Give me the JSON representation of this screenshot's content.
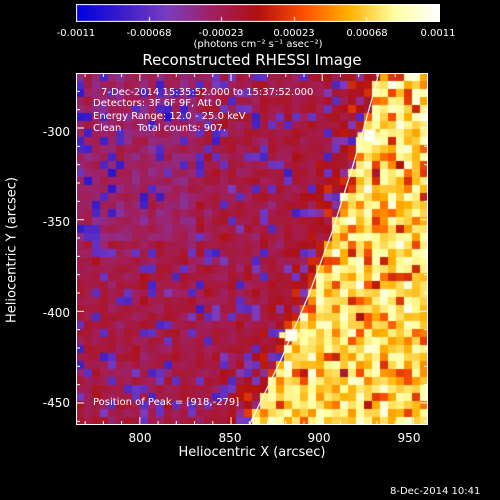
{
  "colorbar": {
    "ticks": [
      "-0.0011",
      "-0.00068",
      "-0.00023",
      "0.00023",
      "0.00068",
      "0.0011"
    ],
    "unit_label": "(photons cm⁻² s⁻¹ asec⁻²)",
    "range": [
      -0.0011,
      0.0011
    ],
    "colors": [
      "#0000e0",
      "#3a1ec8",
      "#7a3cc0",
      "#a02060",
      "#b01010",
      "#ff5000",
      "#ffb000",
      "#ffffa0",
      "#ffffff"
    ]
  },
  "chart_data": {
    "type": "heatmap",
    "title": "Reconstructed RHESSI Image",
    "xlabel": "Heliocentric X (arcsec)",
    "ylabel": "Heliocentric Y (arcsec)",
    "xlim": [
      765,
      958
    ],
    "ylim": [
      -462,
      -270
    ],
    "x_ticks": [
      "800",
      "850",
      "900",
      "950"
    ],
    "x_tick_values": [
      800,
      850,
      900,
      950
    ],
    "y_ticks": [
      "-300",
      "-350",
      "-400",
      "-450"
    ],
    "y_tick_values": [
      -300,
      -350,
      -400,
      -450
    ],
    "peak": {
      "x": 918,
      "y": -279
    },
    "bright_spots": [
      {
        "x": 926,
        "y": -304
      },
      {
        "x": 883,
        "y": -413
      }
    ],
    "limb_curve": [
      [
        860,
        -462
      ],
      [
        878,
        -425
      ],
      [
        893,
        -390
      ],
      [
        906,
        -355
      ],
      [
        917,
        -320
      ],
      [
        927,
        -285
      ],
      [
        931,
        -270
      ]
    ]
  },
  "annotations": {
    "time_range": "7-Dec-2014 15:35:52.000 to 15:37:52.000",
    "detectors": "Detectors: 3F 6F 9F, Att 0",
    "energy_range": "Energy Range: 12.0 - 25.0 keV",
    "clean_counts": "Clean     Total counts: 907.",
    "peak_position": "Position of Peak = [918,-279]"
  },
  "footer": {
    "timestamp": "8-Dec-2014 10:41"
  }
}
